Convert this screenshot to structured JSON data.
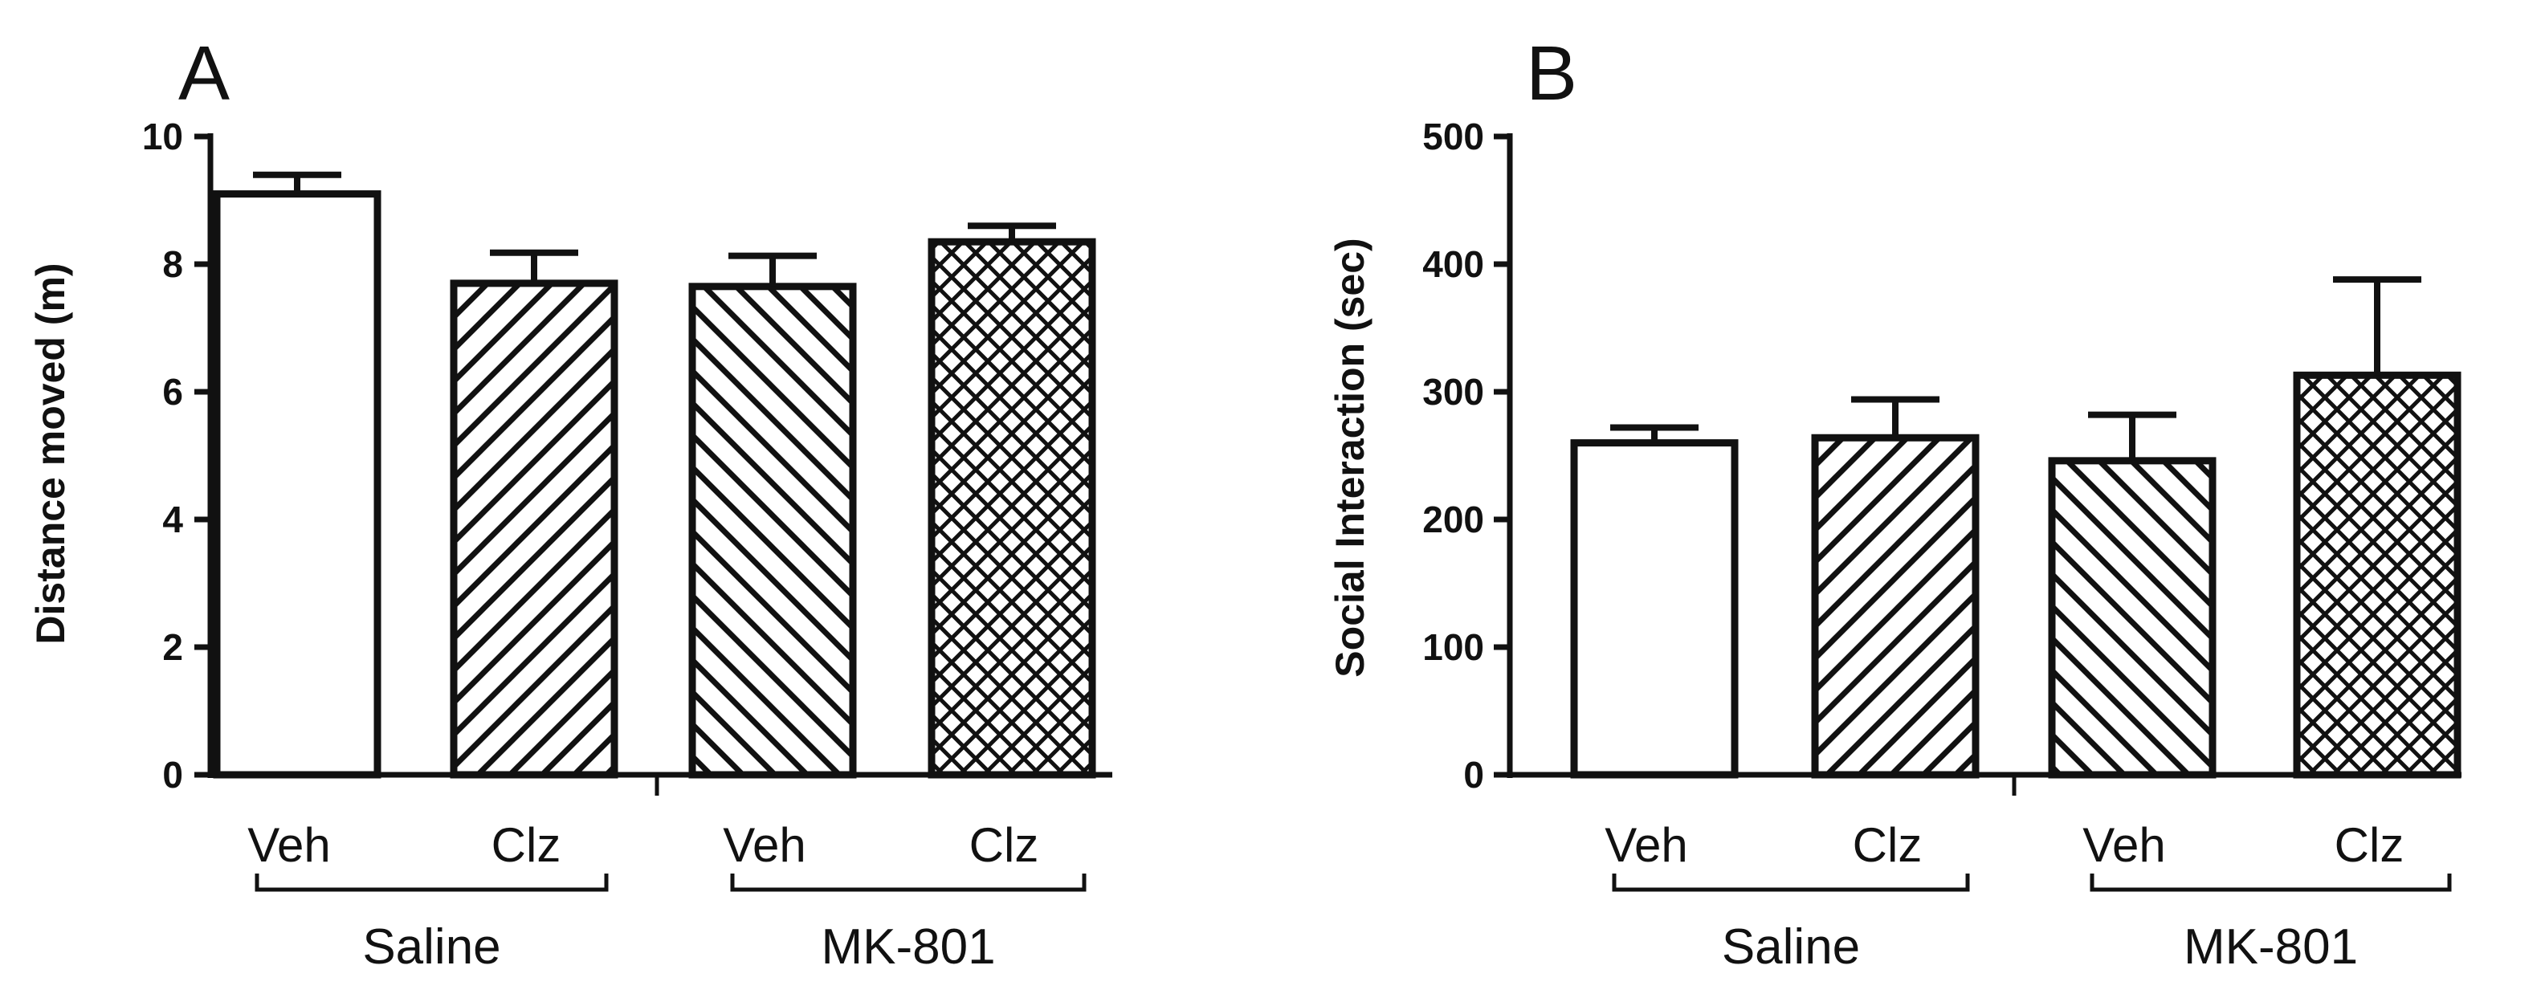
{
  "figure": {
    "colors": {
      "ink": "#111111",
      "bar_fill": "#ffffff"
    },
    "panels": [
      {
        "letter": "A",
        "chart_data": {
          "type": "bar",
          "title": "",
          "ylabel": "Distance moved (m)",
          "xlabel": "",
          "ylim": [
            0,
            10
          ],
          "yticks": [
            0,
            2,
            4,
            6,
            8,
            10
          ],
          "grid": false,
          "categories": [
            "Veh",
            "Clz",
            "Veh",
            "Clz"
          ],
          "groups": [
            {
              "label": "Saline",
              "categories": [
                0,
                1
              ]
            },
            {
              "label": "MK-801",
              "categories": [
                2,
                3
              ]
            }
          ],
          "values": [
            9.1,
            7.7,
            7.65,
            8.35
          ],
          "errors": [
            0.3,
            0.48,
            0.48,
            0.25
          ],
          "patterns": [
            "none",
            "diagonal-up",
            "diagonal-down",
            "crosshatch"
          ]
        }
      },
      {
        "letter": "B",
        "chart_data": {
          "type": "bar",
          "title": "",
          "ylabel": "Social Interaction (sec)",
          "xlabel": "",
          "ylim": [
            0,
            500
          ],
          "yticks": [
            0,
            100,
            200,
            300,
            400,
            500
          ],
          "grid": false,
          "categories": [
            "Veh",
            "Clz",
            "Veh",
            "Clz"
          ],
          "groups": [
            {
              "label": "Saline",
              "categories": [
                0,
                1
              ]
            },
            {
              "label": "MK-801",
              "categories": [
                2,
                3
              ]
            }
          ],
          "values": [
            260,
            264,
            246,
            313
          ],
          "errors": [
            12,
            30,
            36,
            75
          ],
          "patterns": [
            "none",
            "diagonal-up",
            "diagonal-down",
            "crosshatch"
          ]
        }
      }
    ]
  }
}
